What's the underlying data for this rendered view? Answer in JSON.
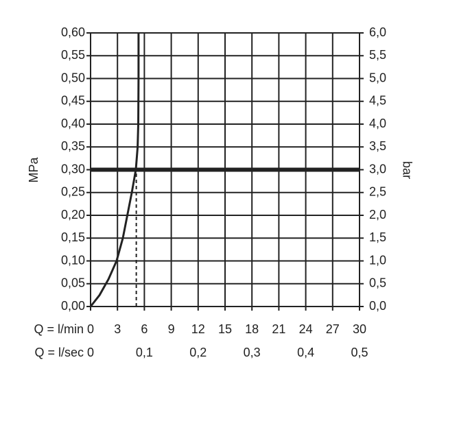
{
  "chart_data": {
    "type": "line",
    "ylabel": "MPa",
    "y2label": "bar",
    "xlabel": "Q = l/min",
    "x2label": "Q = l/sec",
    "xlim": [
      0,
      30
    ],
    "xticks": [
      0,
      3,
      6,
      9,
      12,
      15,
      18,
      21,
      24,
      27,
      30
    ],
    "x2lim": [
      0,
      0.5
    ],
    "x2ticks": [
      0,
      {
        "value": 0.1,
        "label": "0,1"
      },
      {
        "value": 0.2,
        "label": "0,2"
      },
      {
        "value": 0.3,
        "label": "0,3"
      },
      {
        "value": 0.4,
        "label": "0,4"
      },
      {
        "value": 0.5,
        "label": "0,5"
      }
    ],
    "ylim": [
      0,
      0.6
    ],
    "yticks": [
      {
        "value": 0,
        "label": "0,00"
      },
      {
        "value": 0.05,
        "label": "0,05"
      },
      {
        "value": 0.1,
        "label": "0,10"
      },
      {
        "value": 0.15,
        "label": "0,15"
      },
      {
        "value": 0.2,
        "label": "0,20"
      },
      {
        "value": 0.25,
        "label": "0,25"
      },
      {
        "value": 0.3,
        "label": "0,30"
      },
      {
        "value": 0.35,
        "label": "0,35"
      },
      {
        "value": 0.4,
        "label": "0,40"
      },
      {
        "value": 0.45,
        "label": "0,45"
      },
      {
        "value": 0.5,
        "label": "0,50"
      },
      {
        "value": 0.55,
        "label": "0,55"
      },
      {
        "value": 0.6,
        "label": "0,60"
      }
    ],
    "y2lim": [
      0,
      6
    ],
    "y2ticks": [
      {
        "value": 0,
        "label": "0,0"
      },
      {
        "value": 0.5,
        "label": "0,5"
      },
      {
        "value": 1,
        "label": "1,0"
      },
      {
        "value": 1.5,
        "label": "1,5"
      },
      {
        "value": 2,
        "label": "2,0"
      },
      {
        "value": 2.5,
        "label": "2,5"
      },
      {
        "value": 3,
        "label": "3,0"
      },
      {
        "value": 3.5,
        "label": "3,5"
      },
      {
        "value": 4,
        "label": "4,0"
      },
      {
        "value": 4.5,
        "label": "4,5"
      },
      {
        "value": 5,
        "label": "5,0"
      },
      {
        "value": 5.5,
        "label": "5,5"
      },
      {
        "value": 6,
        "label": "6,0"
      }
    ],
    "grid": true,
    "reference_lines": {
      "y": 0.3,
      "x": 5.1
    },
    "series": [
      {
        "color": "#222222",
        "x": [
          0,
          1,
          2,
          2.9,
          3.6,
          4.1,
          4.6,
          5.05,
          5.25,
          5.32,
          5.35,
          5.35
        ],
        "values": [
          0,
          0.025,
          0.06,
          0.1,
          0.15,
          0.2,
          0.25,
          0.3,
          0.35,
          0.4,
          0.5,
          0.6
        ]
      }
    ]
  }
}
